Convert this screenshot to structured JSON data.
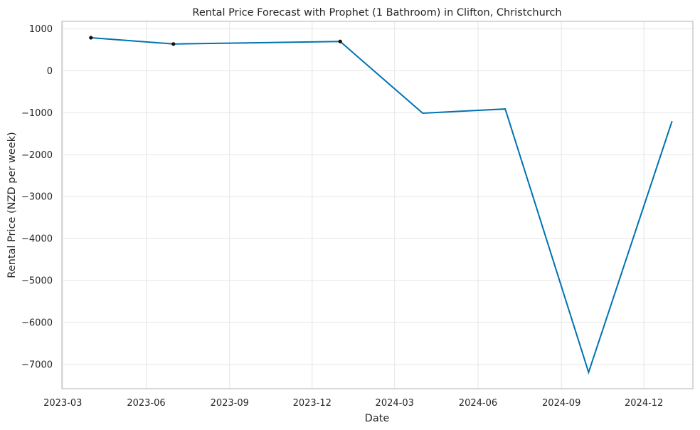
{
  "chart_data": {
    "type": "line",
    "title": "Rental Price Forecast with Prophet (1 Bathroom) in Clifton, Christchurch",
    "xlabel": "Date",
    "ylabel": "Rental Price (NZD per week)",
    "x_tick_labels": [
      "2023-03",
      "2023-06",
      "2023-09",
      "2023-12",
      "2024-03",
      "2024-06",
      "2024-09",
      "2024-12"
    ],
    "y_tick_values": [
      1000,
      0,
      -1000,
      -2000,
      -3000,
      -4000,
      -5000,
      -6000,
      -7000
    ],
    "y_tick_labels": [
      "1000",
      "0",
      "−1000",
      "−2000",
      "−3000",
      "−4000",
      "−5000",
      "−6000",
      "−7000"
    ],
    "ylim": [
      -7580,
      1180
    ],
    "xlim": [
      "2023-02-28",
      "2025-01-24"
    ],
    "grid": true,
    "series": [
      {
        "color": "#0072b2",
        "points": [
          {
            "x": "2023-04-01",
            "y": 790
          },
          {
            "x": "2023-07-01",
            "y": 640
          },
          {
            "x": "2024-01-01",
            "y": 700
          },
          {
            "x": "2024-04-01",
            "y": -1010
          },
          {
            "x": "2024-07-01",
            "y": -910
          },
          {
            "x": "2024-10-01",
            "y": -7190
          },
          {
            "x": "2025-01-01",
            "y": -1200
          }
        ]
      }
    ],
    "observed_points": [
      {
        "x": "2023-04-01",
        "y": 790
      },
      {
        "x": "2023-07-01",
        "y": 640
      },
      {
        "x": "2024-01-01",
        "y": 700
      }
    ]
  }
}
